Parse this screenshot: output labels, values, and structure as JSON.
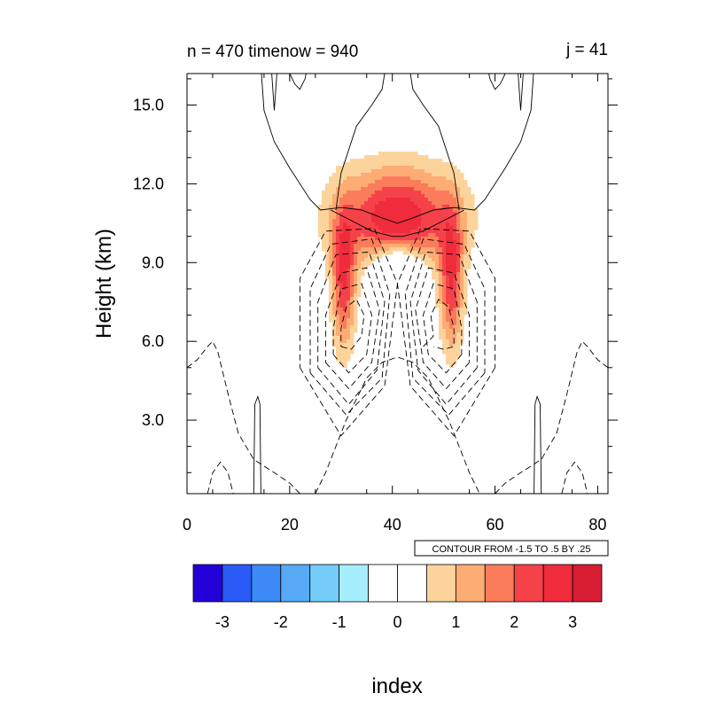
{
  "chart_data": {
    "type": "contour",
    "title_left": "n = 470 timenow = 940",
    "title_right": "j = 41",
    "xlabel": "index",
    "ylabel": "Height (km)",
    "xlim": [
      0,
      82
    ],
    "ylim": [
      0.2,
      16.2
    ],
    "xticks": [
      0,
      20,
      40,
      60,
      80
    ],
    "xtick_labels": [
      "0",
      "20",
      "40",
      "60",
      "80"
    ],
    "yticks": [
      3,
      6,
      9,
      12,
      15
    ],
    "ytick_labels": [
      "3.0",
      "6.0",
      "9.0",
      "12.0",
      "15.0"
    ],
    "contour_info": "CONTOUR FROM -1.5 TO .5 BY .25",
    "colorbar": {
      "levels": [
        -3.5,
        -3,
        -2.5,
        -2,
        -1.5,
        -1,
        -0.5,
        0,
        0.5,
        1,
        1.5,
        2,
        2.5,
        3,
        3.5
      ],
      "labels": [
        "-3",
        "-2",
        "-1",
        "0",
        "1",
        "2",
        "3"
      ],
      "label_values": [
        -3,
        -2,
        -1,
        0,
        1,
        2,
        3
      ],
      "colors": [
        "#2400d8",
        "#2a5bf6",
        "#3b8af5",
        "#57aaf5",
        "#74cdf9",
        "#a6eefd",
        "#ffffff",
        "#ffffff",
        "#fdd39c",
        "#fdac74",
        "#fb7c5a",
        "#f5424a",
        "#ef2b3c",
        "#d71d32"
      ]
    },
    "filled_field": {
      "description_free": true,
      "blobs": [
        {
          "x": 41,
          "y": 10.7,
          "sx": 11.5,
          "sy": 1.9,
          "amp": 3.0
        },
        {
          "x": 30.5,
          "y": 8.3,
          "sx": 2.3,
          "sy": 2.6,
          "amp": 2.4
        },
        {
          "x": 51.5,
          "y": 8.3,
          "sx": 2.3,
          "sy": 2.6,
          "amp": 2.4
        },
        {
          "x": 41,
          "y": 8.6,
          "sx": 4.5,
          "sy": 1.0,
          "amp": -2.6
        }
      ]
    },
    "line_contours": {
      "solid": [
        [
          [
            14.5,
            16.2
          ],
          [
            15,
            14.8
          ],
          [
            17,
            13.6
          ],
          [
            20,
            12.6
          ],
          [
            24,
            11.4
          ],
          [
            26,
            11.0
          ],
          [
            30,
            11.1
          ],
          [
            34,
            11.0
          ],
          [
            38,
            10.7
          ],
          [
            41,
            10.5
          ],
          [
            44,
            10.7
          ],
          [
            48,
            11.0
          ],
          [
            52,
            11.1
          ],
          [
            56,
            11.0
          ],
          [
            58,
            11.4
          ],
          [
            62,
            12.6
          ],
          [
            65,
            13.6
          ],
          [
            67,
            14.8
          ],
          [
            67.5,
            16.2
          ]
        ],
        [
          [
            29,
            11.0
          ],
          [
            30,
            12.4
          ],
          [
            33,
            14.2
          ],
          [
            36,
            15.0
          ],
          [
            38,
            15.6
          ],
          [
            38.5,
            16.2
          ]
        ],
        [
          [
            43.5,
            16.2
          ],
          [
            44,
            15.6
          ],
          [
            46,
            15.0
          ],
          [
            49,
            14.2
          ],
          [
            52,
            12.4
          ],
          [
            53,
            11.0
          ]
        ],
        [
          [
            28,
            11.0
          ],
          [
            32,
            10.6
          ],
          [
            36,
            10.2
          ],
          [
            40,
            10.0
          ],
          [
            41,
            10.0
          ],
          [
            42,
            10.0
          ],
          [
            46,
            10.2
          ],
          [
            50,
            10.6
          ],
          [
            54,
            11.0
          ]
        ],
        [
          [
            16.5,
            16.2
          ],
          [
            17,
            14.8
          ],
          [
            17.5,
            16.2
          ]
        ],
        [
          [
            64.5,
            16.2
          ],
          [
            65,
            14.8
          ],
          [
            65.5,
            16.2
          ]
        ],
        [
          [
            20,
            16.2
          ],
          [
            21,
            15.8
          ],
          [
            22,
            15.6
          ],
          [
            23,
            16.0
          ],
          [
            23.2,
            16.2
          ]
        ],
        [
          [
            58.8,
            16.2
          ],
          [
            59,
            16.0
          ],
          [
            60,
            15.6
          ],
          [
            61,
            15.8
          ],
          [
            62,
            16.2
          ]
        ],
        [
          [
            13,
            0.2
          ],
          [
            13.2,
            3.6
          ],
          [
            13.8,
            3.9
          ],
          [
            14.2,
            3.6
          ],
          [
            14.4,
            0.2
          ]
        ],
        [
          [
            67.6,
            0.2
          ],
          [
            67.8,
            3.6
          ],
          [
            68.2,
            3.9
          ],
          [
            68.8,
            3.6
          ],
          [
            69,
            0.2
          ]
        ]
      ],
      "dashed": [
        [
          [
            30,
            5.8
          ],
          [
            32,
            5.7
          ],
          [
            34,
            6.2
          ],
          [
            34.5,
            7.0
          ],
          [
            33,
            7.6
          ],
          [
            31,
            7.3
          ],
          [
            30,
            6.5
          ],
          [
            30,
            5.8
          ]
        ],
        [
          [
            28.5,
            5.5
          ],
          [
            31.5,
            4.8
          ],
          [
            35,
            5.5
          ],
          [
            36,
            7.0
          ],
          [
            34,
            8.2
          ],
          [
            30,
            8.0
          ],
          [
            28.5,
            6.5
          ],
          [
            28.5,
            5.5
          ]
        ],
        [
          [
            27,
            5.2
          ],
          [
            31.5,
            4.2
          ],
          [
            36,
            5.2
          ],
          [
            37.5,
            7.2
          ],
          [
            35,
            8.8
          ],
          [
            30,
            8.6
          ],
          [
            27,
            7.0
          ],
          [
            27,
            5.2
          ]
        ],
        [
          [
            25.5,
            5.0
          ],
          [
            31.5,
            3.6
          ],
          [
            37,
            4.9
          ],
          [
            38.5,
            7.5
          ],
          [
            35.5,
            9.4
          ],
          [
            29,
            9.3
          ],
          [
            25.5,
            7.5
          ],
          [
            25.5,
            5.0
          ]
        ],
        [
          [
            24,
            4.8
          ],
          [
            31,
            3.2
          ],
          [
            38,
            4.6
          ],
          [
            39.5,
            7.8
          ],
          [
            36,
            9.9
          ],
          [
            28,
            9.7
          ],
          [
            24,
            8.0
          ],
          [
            24,
            4.8
          ]
        ],
        [
          [
            22,
            5.0
          ],
          [
            30,
            2.4
          ],
          [
            38.5,
            4.3
          ],
          [
            41,
            8.2
          ],
          [
            36.5,
            10.3
          ],
          [
            27,
            10.2
          ],
          [
            22,
            8.4
          ],
          [
            22,
            5.0
          ]
        ],
        [
          [
            46,
            5.8
          ],
          [
            48,
            6.2
          ],
          [
            47.5,
            7.0
          ],
          [
            49,
            7.6
          ],
          [
            51,
            7.3
          ],
          [
            52,
            6.5
          ],
          [
            52,
            5.8
          ],
          [
            50,
            5.7
          ],
          [
            48,
            5.8
          ]
        ],
        [
          [
            53.5,
            5.5
          ],
          [
            50.5,
            4.8
          ],
          [
            47,
            5.5
          ],
          [
            46,
            7.0
          ],
          [
            48,
            8.2
          ],
          [
            52,
            8.0
          ],
          [
            53.5,
            6.5
          ],
          [
            53.5,
            5.5
          ]
        ],
        [
          [
            55,
            5.2
          ],
          [
            50.5,
            4.2
          ],
          [
            46,
            5.2
          ],
          [
            44.5,
            7.2
          ],
          [
            47,
            8.8
          ],
          [
            52,
            8.6
          ],
          [
            55,
            7.0
          ],
          [
            55,
            5.2
          ]
        ],
        [
          [
            56.5,
            5.0
          ],
          [
            50.5,
            3.6
          ],
          [
            45,
            4.9
          ],
          [
            43.5,
            7.5
          ],
          [
            46.5,
            9.4
          ],
          [
            53,
            9.3
          ],
          [
            56.5,
            7.5
          ],
          [
            56.5,
            5.0
          ]
        ],
        [
          [
            58,
            4.8
          ],
          [
            51,
            3.2
          ],
          [
            44,
            4.6
          ],
          [
            42.5,
            7.8
          ],
          [
            46,
            9.9
          ],
          [
            54,
            9.7
          ],
          [
            58,
            8.0
          ],
          [
            58,
            4.8
          ]
        ],
        [
          [
            60,
            5.0
          ],
          [
            52,
            2.4
          ],
          [
            43.5,
            4.3
          ],
          [
            41,
            8.2
          ],
          [
            45.5,
            10.3
          ],
          [
            55,
            10.2
          ],
          [
            60,
            8.4
          ],
          [
            60,
            5.0
          ]
        ],
        [
          [
            25,
            0.2
          ],
          [
            27,
            1.0
          ],
          [
            31,
            3.0
          ],
          [
            35,
            4.6
          ],
          [
            38,
            5.2
          ],
          [
            41,
            5.4
          ],
          [
            44,
            5.2
          ],
          [
            47,
            4.6
          ],
          [
            51,
            3.0
          ],
          [
            55,
            1.0
          ],
          [
            57,
            0.2
          ]
        ],
        [
          [
            0,
            5.0
          ],
          [
            2,
            5.3
          ],
          [
            4,
            5.8
          ],
          [
            5,
            6.0
          ],
          [
            6,
            5.6
          ],
          [
            8,
            4.0
          ],
          [
            10,
            2.5
          ],
          [
            13,
            1.5
          ],
          [
            17,
            1.0
          ],
          [
            20,
            0.6
          ],
          [
            22,
            0.2
          ]
        ],
        [
          [
            60,
            0.2
          ],
          [
            62,
            0.6
          ],
          [
            65,
            1.0
          ],
          [
            69,
            1.5
          ],
          [
            72,
            2.5
          ],
          [
            74,
            4.0
          ],
          [
            76,
            5.6
          ],
          [
            77,
            6.0
          ],
          [
            78,
            5.8
          ],
          [
            80,
            5.3
          ],
          [
            82,
            5.0
          ]
        ],
        [
          [
            4,
            0.2
          ],
          [
            5,
            1.0
          ],
          [
            6.5,
            1.4
          ],
          [
            8,
            1.0
          ],
          [
            9,
            0.2
          ]
        ],
        [
          [
            73,
            0.2
          ],
          [
            74,
            1.0
          ],
          [
            75.5,
            1.4
          ],
          [
            77,
            1.0
          ],
          [
            78,
            0.2
          ]
        ]
      ]
    }
  }
}
